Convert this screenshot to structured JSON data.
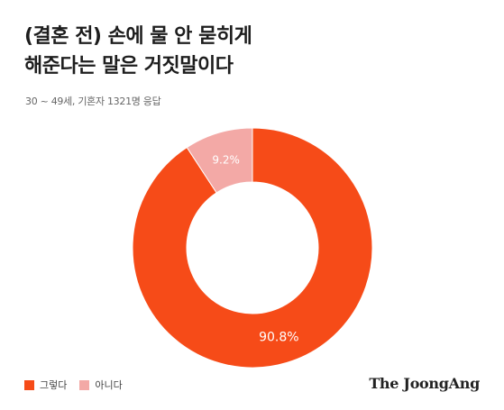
{
  "title_lines": [
    "(결혼 전) 손에 물 안 묻히게",
    "해준다는 말은 거짓말이다"
  ],
  "subtitle": "30 ~ 49세, 기혼자 1321명 응답",
  "brand": "The JoongAng",
  "chart_data": {
    "type": "pie",
    "donut": true,
    "categories": [
      "그렇다",
      "아니다"
    ],
    "values": [
      90.8,
      9.2
    ],
    "value_labels": [
      "90.8%",
      "9.2%"
    ],
    "colors": [
      "#f64b18",
      "#f3a9a6"
    ],
    "legend_position": "bottom-left"
  }
}
